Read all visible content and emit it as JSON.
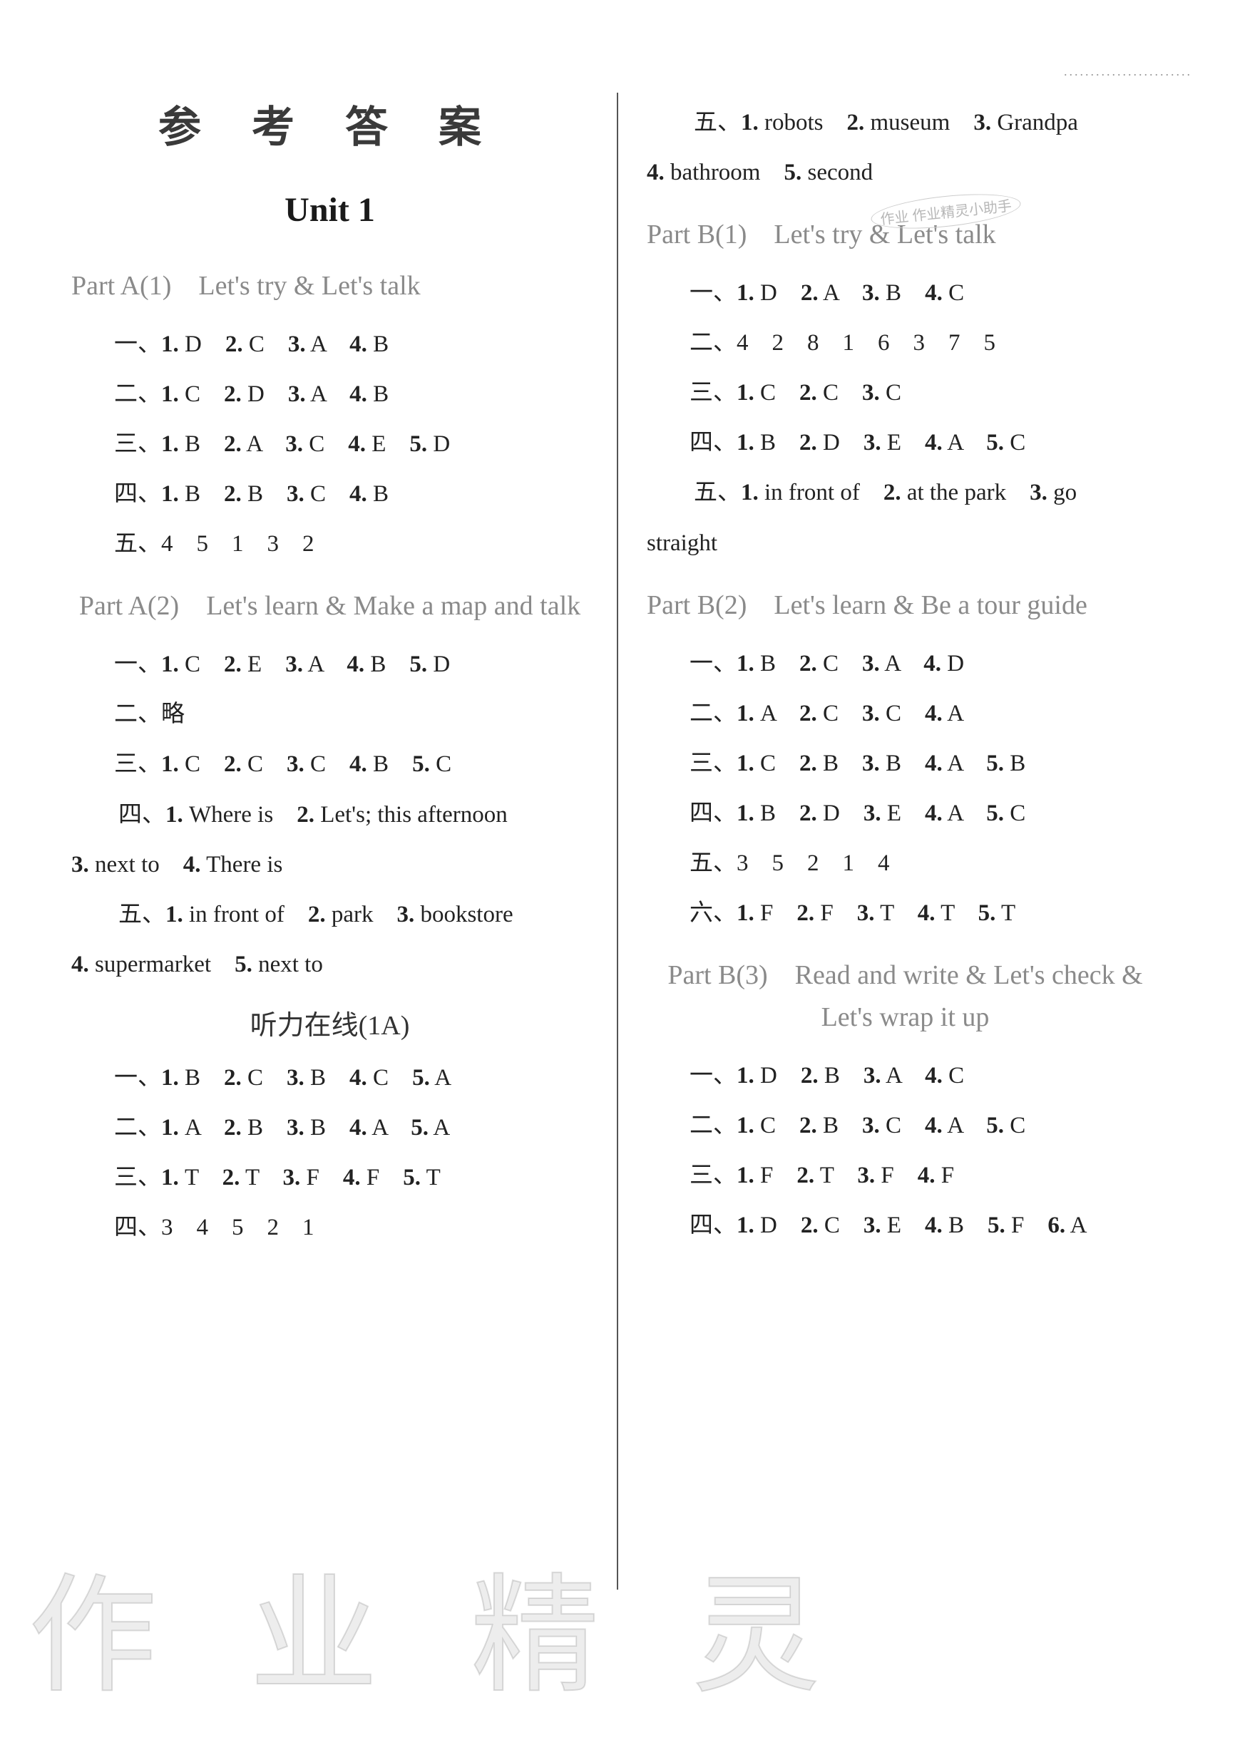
{
  "doc": {
    "title": "参 考 答 案",
    "unit": "Unit 1",
    "top_dots": "........................",
    "watermark": "作 业 精 灵",
    "stamp": "作业\n作业精灵小助手"
  },
  "left": {
    "partA1_heading": "Part A(1)　Let's try & Let's talk",
    "partA1": {
      "l1": "一、1. D　2. C　3. A　4. B",
      "l2": "二、1. C　2. D　3. A　4. B",
      "l3": "三、1. B　2. A　3. C　4. E　5. D",
      "l4": "四、1. B　2. B　3. C　4. B",
      "l5": "五、4　5　1　3　2"
    },
    "partA2_heading": "Part A(2)　Let's learn & Make a map and talk",
    "partA2": {
      "l1": "一、1. C　2. E　3. A　4. B　5. D",
      "l2": "二、略",
      "l3": "三、1. C　2. C　3. C　4. B　5. C",
      "l4a": "　　四、1. Where is　2. Let's; this afternoon",
      "l4b": "3. next to　4. There is",
      "l5a": "　　五、1. in front of　2. park　3. bookstore",
      "l5b": "4. supermarket　5. next to"
    },
    "listen_heading": "听力在线(1A)",
    "listen": {
      "l1": "一、1. B　2. C　3. B　4. C　5. A",
      "l2": "二、1. A　2. B　3. B　4. A　5. A",
      "l3": "三、1. T　2. T　3. F　4. F　5. T",
      "l4": "四、3　4　5　2　1"
    }
  },
  "right": {
    "listen_cont": {
      "l1a": "　　五、1. robots　2. museum　3. Grandpa",
      "l1b": "4. bathroom　5. second"
    },
    "partB1_heading": "Part B(1)　Let's try & Let's talk",
    "partB1": {
      "l1": "一、1. D　2. A　3. B　4. C",
      "l2": "二、4　2　8　1　6　3　7　5",
      "l3": "三、1. C　2. C　3. C",
      "l4": "四、1. B　2. D　3. E　4. A　5. C",
      "l5a": "　　五、1. in front of　2. at the park　3. go",
      "l5b": "straight"
    },
    "partB2_heading": "Part B(2)　Let's learn & Be a tour guide",
    "partB2": {
      "l1": "一、1. B　2. C　3. A　4. D",
      "l2": "二、1. A　2. C　3. C　4. A",
      "l3": "三、1. C　2. B　3. B　4. A　5. B",
      "l4": "四、1. B　2. D　3. E　4. A　5. C",
      "l5": "五、3　5　2　1　4",
      "l6": "六、1. F　2. F　3. T　4. T　5. T"
    },
    "partB3_heading": "Part B(3)　Read and write & Let's check & Let's wrap it up",
    "partB3": {
      "l1": "一、1. D　2. B　3. A　4. C",
      "l2": "二、1. C　2. B　3. C　4. A　5. C",
      "l3": "三、1. F　2. T　3. F　4. F",
      "l4": "四、1. D　2. C　3. E　4. B　5. F　6. A"
    }
  }
}
